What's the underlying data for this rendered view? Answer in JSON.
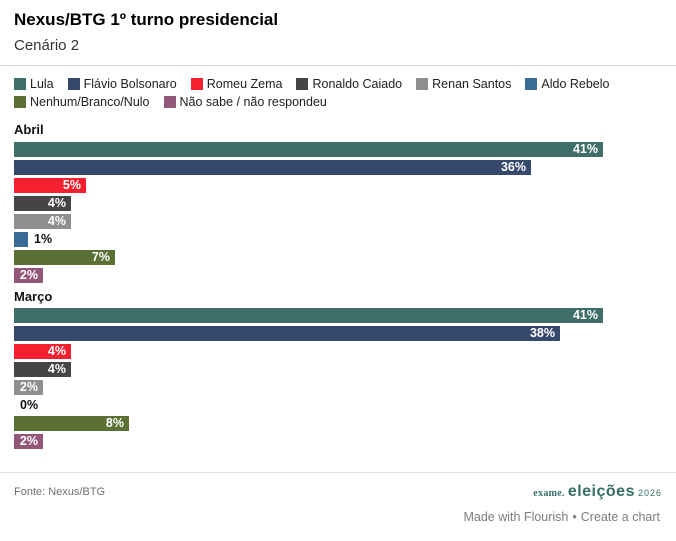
{
  "header": {
    "title": "Nexus/BTG 1º turno presidencial",
    "subtitle": "Cenário 2"
  },
  "chart_data": {
    "type": "bar",
    "orientation": "horizontal",
    "value_suffix": "%",
    "max_value": 41,
    "series": [
      "Lula",
      "Flávio Bolsonaro",
      "Romeu Zema",
      "Ronaldo Caiado",
      "Renan Santos",
      "Aldo Rebelo",
      "Nenhum/Branco/Nulo",
      "Não sabe / não respondeu"
    ],
    "colors": [
      "#3f6e68",
      "#36496c",
      "#f5202f",
      "#454545",
      "#8f8f8f",
      "#3b6c96",
      "#5a7034",
      "#93577a"
    ],
    "groups": [
      {
        "label": "Abril",
        "values": [
          41,
          36,
          5,
          4,
          4,
          1,
          7,
          2
        ]
      },
      {
        "label": "Março",
        "values": [
          41,
          38,
          4,
          4,
          2,
          0,
          8,
          2
        ]
      }
    ],
    "legend_position": "top",
    "grid": false
  },
  "footer": {
    "source": "Fonte: Nexus/BTG",
    "logo": {
      "brand": "exame.",
      "title": "eleições",
      "year": "2026"
    },
    "attribution": {
      "made_with": "Made with Flourish",
      "separator": "•",
      "create": "Create a chart"
    }
  }
}
